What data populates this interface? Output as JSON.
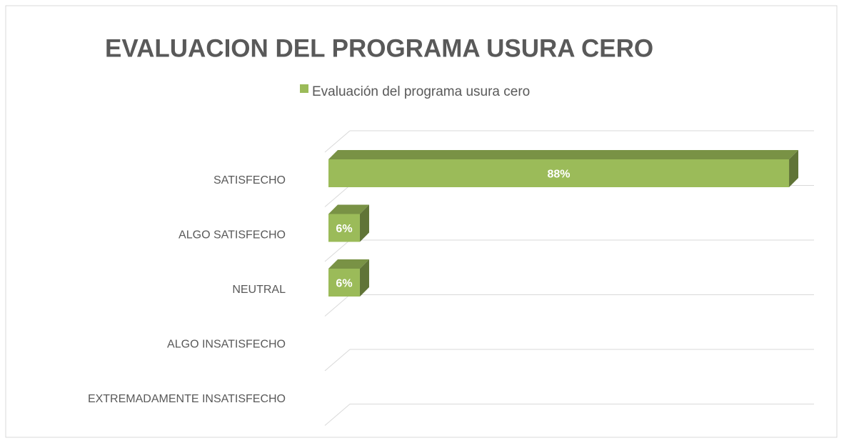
{
  "chart_data": {
    "type": "bar3d",
    "title": "EVALUACION DEL PROGRAMA USURA CERO",
    "categories": [
      "SATISFECHO",
      "ALGO SATISFECHO",
      "NEUTRAL",
      "ALGO INSATISFECHO",
      "EXTREMADAMENTE INSATISFECHO"
    ],
    "series": [
      {
        "name": "Evaluación del programa usura cero",
        "color": "#9bbb59",
        "values": [
          88,
          6,
          6,
          0,
          0
        ],
        "value_labels": [
          "88%",
          "6%",
          "6%",
          null,
          null
        ]
      }
    ],
    "legend": "top"
  }
}
